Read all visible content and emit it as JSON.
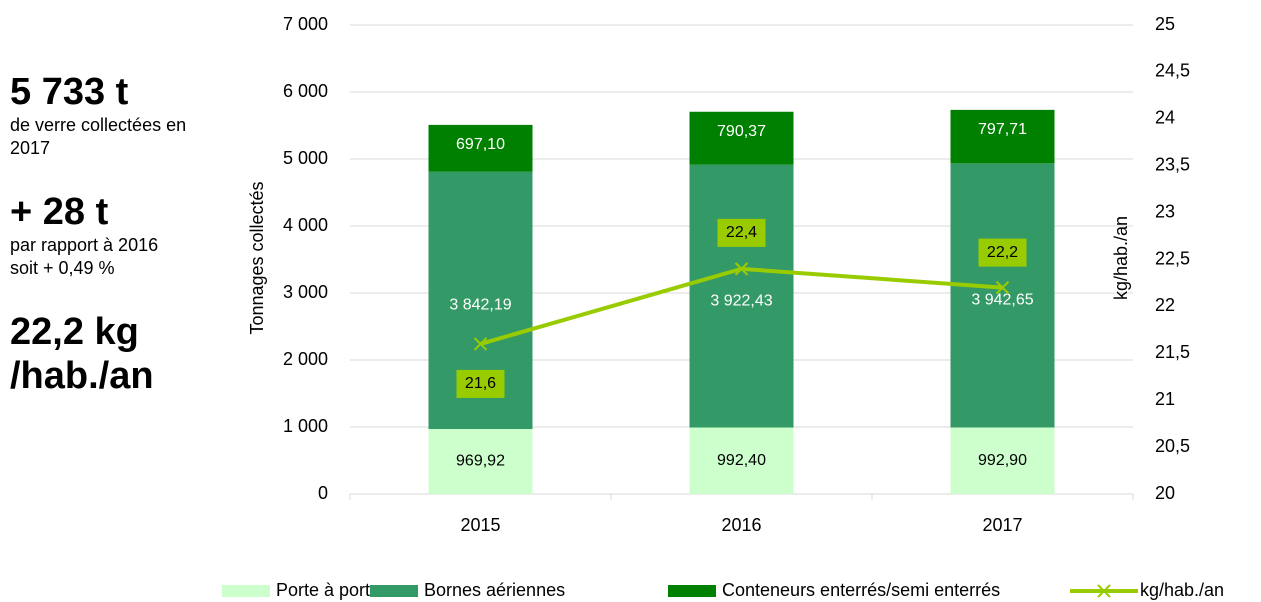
{
  "sidebar": [
    {
      "headline": "5 733 t",
      "lines": [
        "de verre collectées en",
        "2017"
      ]
    },
    {
      "headline": "+ 28 t",
      "lines": [
        "par rapport à 2016",
        "soit + 0,49 %"
      ]
    },
    {
      "headline": "22,2 kg",
      "lines": []
    },
    {
      "headline": "/hab./an",
      "lines": []
    }
  ],
  "chart_data": {
    "type": "bar",
    "ylabel": "Tonnages collectés",
    "y2label": "kg/hab./an",
    "categories": [
      "2015",
      "2016",
      "2017"
    ],
    "stacked": true,
    "series": [
      {
        "name": "Porte à porte",
        "color": "#ccffcc",
        "values": [
          969.92,
          992.4,
          992.9
        ],
        "value_labels": [
          "969,92",
          "992,40",
          "992,90"
        ]
      },
      {
        "name": "Bornes aériennes",
        "color": "#339966",
        "values": [
          3842.19,
          3922.43,
          3942.65
        ],
        "value_labels": [
          "3 842,19",
          "3 922,43",
          "3 942,65"
        ]
      },
      {
        "name": "Conteneurs enterrés/semi enterrés",
        "color": "#008000",
        "values": [
          697.1,
          790.37,
          797.71
        ],
        "value_labels": [
          "697,10",
          "790,37",
          "797,71"
        ]
      },
      {
        "name": "kg/hab./an",
        "type": "line",
        "axis": "y2",
        "color": "#99cc00",
        "values": [
          21.6,
          22.4,
          22.2
        ],
        "value_labels": [
          "21,6",
          "22,4",
          "22,2"
        ]
      }
    ],
    "ylim": [
      0,
      7000
    ],
    "yticks": [
      0,
      {
        "value": 1000,
        "label": "1 000"
      },
      {
        "value": 2000,
        "label": "2 000"
      },
      {
        "value": 3000,
        "label": "3 000"
      },
      {
        "value": 4000,
        "label": "4 000"
      },
      {
        "value": 5000,
        "label": "5 000"
      },
      {
        "value": 6000,
        "label": "6 000"
      },
      {
        "value": 7000,
        "label": "7 000"
      }
    ],
    "y2lim": [
      20,
      25
    ],
    "y2ticks": [
      20,
      {
        "value": 20.5,
        "label": "20,5"
      },
      21,
      {
        "value": 21.5,
        "label": "21,5"
      },
      22,
      {
        "value": 22.5,
        "label": "22,5"
      },
      23,
      {
        "value": 23.5,
        "label": "23,5"
      },
      24,
      {
        "value": 24.5,
        "label": "24,5"
      },
      25
    ],
    "grid": true,
    "legend": "bottom"
  }
}
